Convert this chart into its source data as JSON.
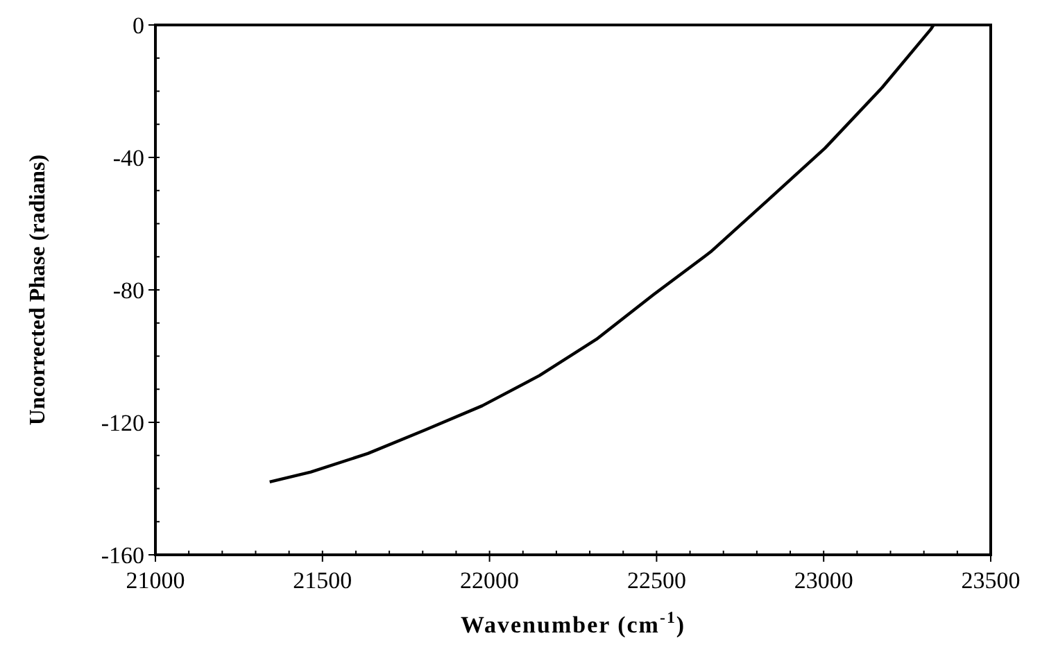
{
  "chart_data": {
    "type": "line",
    "xlabel": "Wavenumber (cm$^{-1}$)",
    "ylabel": "Uncorrected Phase (radians)",
    "xlim": [
      21000,
      23500
    ],
    "ylim": [
      -160,
      0
    ],
    "xticks": [
      21000,
      21500,
      22000,
      22500,
      23000,
      23500
    ],
    "yticks": [
      -160,
      -120,
      -80,
      -40,
      0
    ],
    "series": [
      {
        "color": "#000000",
        "x": [
          21342,
          21465,
          21636,
          21807,
          21978,
          22149,
          22320,
          22491,
          22662,
          22833,
          23004,
          23175,
          23320,
          23329
        ],
        "values": [
          -138,
          -135,
          -129.4,
          -122.3,
          -115,
          -105.9,
          -94.9,
          -81.4,
          -68.5,
          -52.9,
          -37.2,
          -18.9,
          -1.4,
          0
        ]
      }
    ],
    "marker": "none",
    "line_style": "solid"
  }
}
